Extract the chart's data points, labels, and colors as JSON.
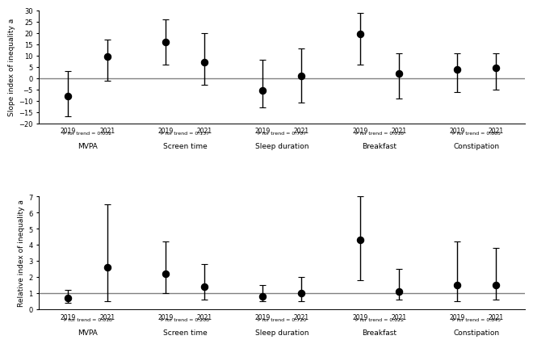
{
  "top": {
    "ylabel": "Slope index of inequality a",
    "ylim": [
      -20.0,
      30.0
    ],
    "yticks": [
      -20.0,
      -15.0,
      -10.0,
      -5.0,
      0.0,
      5.0,
      10.0,
      15.0,
      20.0,
      25.0,
      30.0
    ],
    "hline": 0.0,
    "groups": [
      "MVPA",
      "Screen time",
      "Sleep duration",
      "Breakfast",
      "Constipation"
    ],
    "p_values": [
      "P for trend = 0.032",
      "P for trend = 0.137",
      "P for trend = 0.707",
      "P for trend = 0.018",
      "P for trend = 0.865"
    ],
    "points": [
      {
        "year": "2019",
        "value": -8.0,
        "ci_low": -17.0,
        "ci_high": 3.0
      },
      {
        "year": "2021",
        "value": 9.5,
        "ci_low": -1.0,
        "ci_high": 17.0
      },
      {
        "year": "2019",
        "value": 16.0,
        "ci_low": 6.0,
        "ci_high": 26.0
      },
      {
        "year": "2021",
        "value": 7.0,
        "ci_low": -3.0,
        "ci_high": 20.0
      },
      {
        "year": "2019",
        "value": -5.5,
        "ci_low": -13.0,
        "ci_high": 8.0
      },
      {
        "year": "2021",
        "value": 1.0,
        "ci_low": -11.0,
        "ci_high": 13.0
      },
      {
        "year": "2019",
        "value": 19.5,
        "ci_low": 6.0,
        "ci_high": 29.0
      },
      {
        "year": "2021",
        "value": 2.0,
        "ci_low": -9.0,
        "ci_high": 11.0
      },
      {
        "year": "2019",
        "value": 4.0,
        "ci_low": -6.0,
        "ci_high": 11.0
      },
      {
        "year": "2021",
        "value": 4.5,
        "ci_low": -5.0,
        "ci_high": 11.0
      }
    ]
  },
  "bottom": {
    "ylabel": "Relative index of inequality a",
    "ylim": [
      0.0,
      7.0
    ],
    "yticks": [
      0.0,
      1.0,
      2.0,
      3.0,
      4.0,
      5.0,
      6.0,
      7.0
    ],
    "hline": 1.0,
    "groups": [
      "MVPA",
      "Screen time",
      "Sleep duration",
      "Breakfast",
      "Constipation"
    ],
    "p_values": [
      "P for trend = 0.018",
      "P for trend = 0.208",
      "P for trend = 0.720",
      "P for trend = 0.022",
      "P for trend = 0.845"
    ],
    "points": [
      {
        "year": "2019",
        "value": 0.7,
        "ci_low": 0.4,
        "ci_high": 1.2
      },
      {
        "year": "2021",
        "value": 2.6,
        "ci_low": 0.5,
        "ci_high": 6.5
      },
      {
        "year": "2019",
        "value": 2.2,
        "ci_low": 1.0,
        "ci_high": 4.2
      },
      {
        "year": "2021",
        "value": 1.4,
        "ci_low": 0.6,
        "ci_high": 2.8
      },
      {
        "year": "2019",
        "value": 0.8,
        "ci_low": 0.5,
        "ci_high": 1.5
      },
      {
        "year": "2021",
        "value": 1.0,
        "ci_low": 0.5,
        "ci_high": 2.0
      },
      {
        "year": "2019",
        "value": 4.3,
        "ci_low": 1.8,
        "ci_high": 7.0
      },
      {
        "year": "2021",
        "value": 1.1,
        "ci_low": 0.6,
        "ci_high": 2.5
      },
      {
        "year": "2019",
        "value": 1.5,
        "ci_low": 0.5,
        "ci_high": 4.2
      },
      {
        "year": "2021",
        "value": 1.5,
        "ci_low": 0.6,
        "ci_high": 3.8
      }
    ]
  },
  "group_x_centers": [
    1.5,
    4.5,
    7.5,
    10.5,
    13.5
  ],
  "group_offsets": [
    -0.6,
    0.6
  ],
  "year_labels": [
    "2019",
    "2021"
  ],
  "marker_size": 6,
  "capsize": 3,
  "linewidth": 1.0,
  "point_color": "black",
  "error_color": "black",
  "hline_color": "gray",
  "hline_lw": 1.0
}
